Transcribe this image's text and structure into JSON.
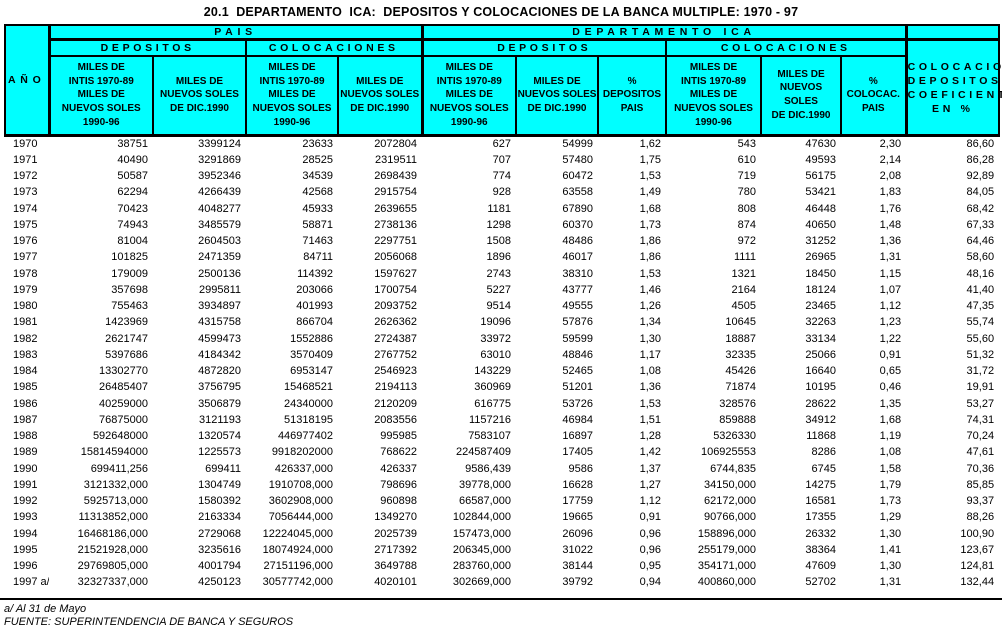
{
  "title": "20.1  DEPARTAMENTO  ICA:  DEPOSITOS Y COLOCACIONES DE LA BANCA MULTIPLE: 1970 - 97",
  "colors": {
    "header_bg": "#00FFFF",
    "text": "#000000",
    "background": "#FFFFFF"
  },
  "table": {
    "year_header": "AÑO",
    "groups": {
      "pais": "PAIS",
      "ica": "DEPARTAMENTO  ICA"
    },
    "subgroups": {
      "depositos": "DEPOSITOS",
      "colocaciones": "COLOCACIONES"
    },
    "column_headers": {
      "miles_intis": [
        "MILES DE",
        "INTIS 1970-89",
        "MILES DE",
        "NUEVOS SOLES",
        "1990-96"
      ],
      "miles_soles": [
        "MILES DE",
        "NUEVOS SOLES",
        "DE DIC.1990"
      ],
      "pct_depositos": [
        "%",
        "DEPOSITOS",
        "PAIS"
      ],
      "pct_colocac": [
        "%",
        "COLOCAC.",
        "PAIS"
      ],
      "coeficiente": [
        "COLOCACIONES/",
        "DEPOSITOS",
        "COEFICIENTE",
        "EN %"
      ]
    },
    "rows": [
      [
        "1970",
        "38751",
        "3399124",
        "23633",
        "2072804",
        "627",
        "54999",
        "1,62",
        "543",
        "47630",
        "2,30",
        "86,60"
      ],
      [
        "1971",
        "40490",
        "3291869",
        "28525",
        "2319511",
        "707",
        "57480",
        "1,75",
        "610",
        "49593",
        "2,14",
        "86,28"
      ],
      [
        "1972",
        "50587",
        "3952346",
        "34539",
        "2698439",
        "774",
        "60472",
        "1,53",
        "719",
        "56175",
        "2,08",
        "92,89"
      ],
      [
        "1973",
        "62294",
        "4266439",
        "42568",
        "2915754",
        "928",
        "63558",
        "1,49",
        "780",
        "53421",
        "1,83",
        "84,05"
      ],
      [
        "1974",
        "70423",
        "4048277",
        "45933",
        "2639655",
        "1181",
        "67890",
        "1,68",
        "808",
        "46448",
        "1,76",
        "68,42"
      ],
      [
        "1975",
        "74943",
        "3485579",
        "58871",
        "2738136",
        "1298",
        "60370",
        "1,73",
        "874",
        "40650",
        "1,48",
        "67,33"
      ],
      [
        "1976",
        "81004",
        "2604503",
        "71463",
        "2297751",
        "1508",
        "48486",
        "1,86",
        "972",
        "31252",
        "1,36",
        "64,46"
      ],
      [
        "1977",
        "101825",
        "2471359",
        "84711",
        "2056068",
        "1896",
        "46017",
        "1,86",
        "1111",
        "26965",
        "1,31",
        "58,60"
      ],
      [
        "1978",
        "179009",
        "2500136",
        "114392",
        "1597627",
        "2743",
        "38310",
        "1,53",
        "1321",
        "18450",
        "1,15",
        "48,16"
      ],
      [
        "1979",
        "357698",
        "2995811",
        "203066",
        "1700754",
        "5227",
        "43777",
        "1,46",
        "2164",
        "18124",
        "1,07",
        "41,40"
      ],
      [
        "1980",
        "755463",
        "3934897",
        "401993",
        "2093752",
        "9514",
        "49555",
        "1,26",
        "4505",
        "23465",
        "1,12",
        "47,35"
      ],
      [
        "1981",
        "1423969",
        "4315758",
        "866704",
        "2626362",
        "19096",
        "57876",
        "1,34",
        "10645",
        "32263",
        "1,23",
        "55,74"
      ],
      [
        "1982",
        "2621747",
        "4599473",
        "1552886",
        "2724387",
        "33972",
        "59599",
        "1,30",
        "18887",
        "33134",
        "1,22",
        "55,60"
      ],
      [
        "1983",
        "5397686",
        "4184342",
        "3570409",
        "2767752",
        "63010",
        "48846",
        "1,17",
        "32335",
        "25066",
        "0,91",
        "51,32"
      ],
      [
        "1984",
        "13302770",
        "4872820",
        "6953147",
        "2546923",
        "143229",
        "52465",
        "1,08",
        "45426",
        "16640",
        "0,65",
        "31,72"
      ],
      [
        "1985",
        "26485407",
        "3756795",
        "15468521",
        "2194113",
        "360969",
        "51201",
        "1,36",
        "71874",
        "10195",
        "0,46",
        "19,91"
      ],
      [
        "1986",
        "40259000",
        "3506879",
        "24340000",
        "2120209",
        "616775",
        "53726",
        "1,53",
        "328576",
        "28622",
        "1,35",
        "53,27"
      ],
      [
        "1987",
        "76875000",
        "3121193",
        "51318195",
        "2083556",
        "1157216",
        "46984",
        "1,51",
        "859888",
        "34912",
        "1,68",
        "74,31"
      ],
      [
        "1988",
        "592648000",
        "1320574",
        "446977402",
        "995985",
        "7583107",
        "16897",
        "1,28",
        "5326330",
        "11868",
        "1,19",
        "70,24"
      ],
      [
        "1989",
        "15814594000",
        "1225573",
        "9918202000",
        "768622",
        "224587409",
        "17405",
        "1,42",
        "106925553",
        "8286",
        "1,08",
        "47,61"
      ],
      [
        "1990",
        "699411,256",
        "699411",
        "426337,000",
        "426337",
        "9586,439",
        "9586",
        "1,37",
        "6744,835",
        "6745",
        "1,58",
        "70,36"
      ],
      [
        "1991",
        "3121332,000",
        "1304749",
        "1910708,000",
        "798696",
        "39778,000",
        "16628",
        "1,27",
        "34150,000",
        "14275",
        "1,79",
        "85,85"
      ],
      [
        "1992",
        "5925713,000",
        "1580392",
        "3602908,000",
        "960898",
        "66587,000",
        "17759",
        "1,12",
        "62172,000",
        "16581",
        "1,73",
        "93,37"
      ],
      [
        "1993",
        "11313852,000",
        "2163334",
        "7056444,000",
        "1349270",
        "102844,000",
        "19665",
        "0,91",
        "90766,000",
        "17355",
        "1,29",
        "88,26"
      ],
      [
        "1994",
        "16468186,000",
        "2729068",
        "12224045,000",
        "2025739",
        "157473,000",
        "26096",
        "0,96",
        "158896,000",
        "26332",
        "1,30",
        "100,90"
      ],
      [
        "1995",
        "21521928,000",
        "3235616",
        "18074924,000",
        "2717392",
        "206345,000",
        "31022",
        "0,96",
        "255179,000",
        "38364",
        "1,41",
        "123,67"
      ],
      [
        "1996",
        "29769805,000",
        "4001794",
        "27151196,000",
        "3649788",
        "283760,000",
        "38144",
        "0,95",
        "354171,000",
        "47609",
        "1,30",
        "124,81"
      ],
      [
        "1997 a/",
        "32327337,000",
        "4250123",
        "30577742,000",
        "4020101",
        "302669,000",
        "39792",
        "0,94",
        "400860,000",
        "52702",
        "1,31",
        "132,44"
      ]
    ]
  },
  "footnotes": {
    "note": "a/ Al 31 de Mayo",
    "source": "FUENTE: SUPERINTENDENCIA DE BANCA Y SEGUROS"
  }
}
